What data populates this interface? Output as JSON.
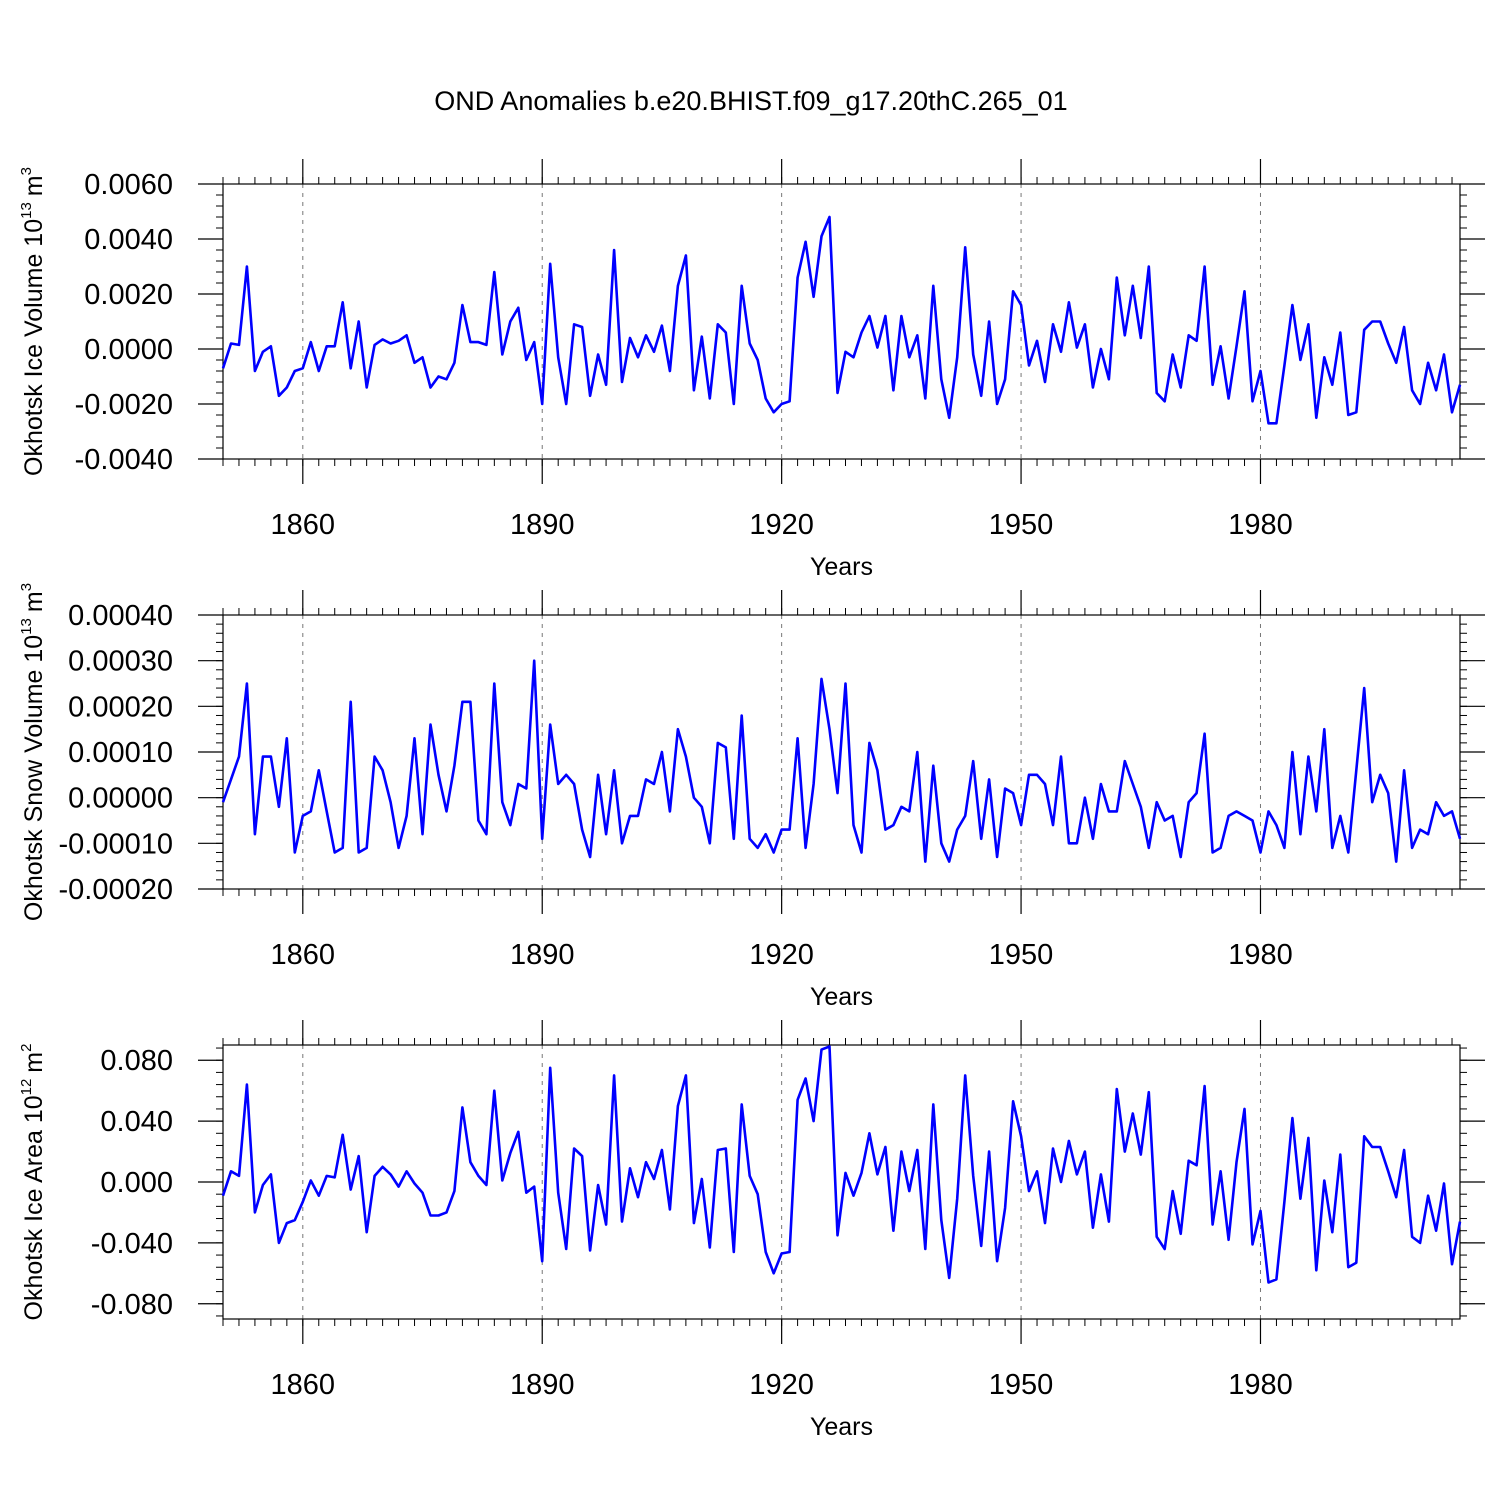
{
  "figure": {
    "title": "OND Anomalies b.e20.BHIST.f09_g17.20thC.265_01",
    "line_color": "#0000ff"
  },
  "chart_data": [
    {
      "type": "line",
      "ylabel_main": "Okhotsk Ice Volume 10",
      "ylabel_exp": "13",
      "ylabel_unit": "m",
      "ylabel_unit_exp": "3",
      "xlabel": "Years",
      "xlim": [
        1850,
        2005
      ],
      "ylim": [
        -0.004,
        0.006
      ],
      "yticks": [
        -0.004,
        -0.002,
        0.0,
        0.002,
        0.004,
        0.006
      ],
      "ytick_labels": [
        "-0.0040",
        "-0.0020",
        "0.0000",
        "0.0020",
        "0.0040",
        "0.0060"
      ],
      "xticks": [
        1860,
        1890,
        1920,
        1950,
        1980
      ],
      "xtick_labels": [
        "1860",
        "1890",
        "1920",
        "1950",
        "1980"
      ],
      "x_start": 1850,
      "values": [
        -0.0007,
        0.0002,
        0.00015,
        0.003,
        -0.0008,
        -0.0001,
        0.0001,
        -0.0017,
        -0.0014,
        -0.0008,
        -0.0007,
        0.00025,
        -0.0008,
        0.0001,
        0.0001,
        0.0017,
        -0.0007,
        0.001,
        -0.0014,
        0.00015,
        0.00035,
        0.0002,
        0.0003,
        0.0005,
        -0.0005,
        -0.0003,
        -0.0014,
        -0.001,
        -0.0011,
        -0.0005,
        0.0016,
        0.00025,
        0.00025,
        0.00015,
        0.0028,
        -0.0002,
        0.001,
        0.0015,
        -0.0004,
        0.00025,
        -0.002,
        0.0031,
        -0.0003,
        -0.002,
        0.0009,
        0.0008,
        -0.0017,
        -0.0002,
        -0.0013,
        0.0036,
        -0.0012,
        0.0004,
        -0.0003,
        0.0005,
        -0.0001,
        0.00085,
        -0.0008,
        0.0023,
        0.0034,
        -0.0015,
        0.00045,
        -0.0018,
        0.0009,
        0.0006,
        -0.002,
        0.0023,
        0.0002,
        -0.0004,
        -0.0018,
        -0.0023,
        -0.002,
        -0.0019,
        0.0026,
        0.0039,
        0.0019,
        0.0041,
        0.0048,
        -0.0016,
        -0.0001,
        -0.0003,
        0.0006,
        0.0012,
        5e-05,
        0.0012,
        -0.0015,
        0.0012,
        -0.0003,
        0.0005,
        -0.0018,
        0.0023,
        -0.0011,
        -0.0025,
        -0.0003,
        0.0037,
        -0.0002,
        -0.0017,
        0.001,
        -0.002,
        -0.0011,
        0.0021,
        0.0016,
        -0.0006,
        0.0003,
        -0.0012,
        0.0009,
        -0.0001,
        0.0017,
        5e-05,
        0.0009,
        -0.0014,
        0.0,
        -0.0011,
        0.0026,
        0.0005,
        0.0023,
        0.0004,
        0.003,
        -0.0016,
        -0.0019,
        -0.0002,
        -0.0014,
        0.0005,
        0.0003,
        0.003,
        -0.0013,
        0.0001,
        -0.0018,
        0.0001,
        0.0021,
        -0.0019,
        -0.0008,
        -0.0027,
        -0.0027,
        -0.0006,
        0.0016,
        -0.0004,
        0.0009,
        -0.0025,
        -0.0003,
        -0.0013,
        0.0006,
        -0.0024,
        -0.0023,
        0.0007,
        0.001,
        0.001,
        0.0002,
        -0.0005,
        0.0008,
        -0.0015,
        -0.002,
        -0.0005,
        -0.0015,
        -0.0002,
        -0.0023,
        -0.0013
      ]
    },
    {
      "type": "line",
      "ylabel_main": "Okhotsk Snow Volume 10",
      "ylabel_exp": "13",
      "ylabel_unit": "m",
      "ylabel_unit_exp": "3",
      "xlabel": "Years",
      "xlim": [
        1850,
        2005
      ],
      "ylim": [
        -0.0002,
        0.0004
      ],
      "yticks": [
        -0.0002,
        -0.0001,
        0.0,
        0.0001,
        0.0002,
        0.0003,
        0.0004
      ],
      "ytick_labels": [
        "-0.00020",
        "-0.00010",
        "0.00000",
        "0.00010",
        "0.00020",
        "0.00030",
        "0.00040"
      ],
      "xticks": [
        1860,
        1890,
        1920,
        1950,
        1980
      ],
      "xtick_labels": [
        "1860",
        "1890",
        "1920",
        "1950",
        "1980"
      ],
      "x_start": 1850,
      "values": [
        -1e-05,
        4e-05,
        9e-05,
        0.00025,
        -8e-05,
        9e-05,
        9e-05,
        -2e-05,
        0.00013,
        -0.00012,
        -4e-05,
        -3e-05,
        6e-05,
        -3e-05,
        -0.00012,
        -0.00011,
        0.00021,
        -0.00012,
        -0.00011,
        9e-05,
        6e-05,
        -1e-05,
        -0.00011,
        -4e-05,
        0.00013,
        -8e-05,
        0.00016,
        5e-05,
        -3e-05,
        7e-05,
        0.00021,
        0.00021,
        -5e-05,
        -8e-05,
        0.00025,
        -1e-05,
        -6e-05,
        3e-05,
        2e-05,
        0.0003,
        -9e-05,
        0.00016,
        3e-05,
        5e-05,
        3e-05,
        -7e-05,
        -0.00013,
        5e-05,
        -8e-05,
        6e-05,
        -0.0001,
        -4e-05,
        -4e-05,
        4e-05,
        3e-05,
        0.0001,
        -3e-05,
        0.00015,
        9e-05,
        0.0,
        -2e-05,
        -0.0001,
        0.00012,
        0.00011,
        -9e-05,
        0.00018,
        -9e-05,
        -0.00011,
        -8e-05,
        -0.00012,
        -7e-05,
        -7e-05,
        0.00013,
        -0.00011,
        3e-05,
        0.00026,
        0.00015,
        1e-05,
        0.00025,
        -6e-05,
        -0.00012,
        0.00012,
        6e-05,
        -7e-05,
        -6e-05,
        -2e-05,
        -3e-05,
        0.0001,
        -0.00014,
        7e-05,
        -0.0001,
        -0.00014,
        -7e-05,
        -4e-05,
        8e-05,
        -9e-05,
        4e-05,
        -0.00013,
        2e-05,
        1e-05,
        -6e-05,
        5e-05,
        5e-05,
        3e-05,
        -6e-05,
        9e-05,
        -0.0001,
        -0.0001,
        0.0,
        -9e-05,
        3e-05,
        -3e-05,
        -3e-05,
        8e-05,
        3e-05,
        -2e-05,
        -0.00011,
        -1e-05,
        -5e-05,
        -4e-05,
        -0.00013,
        -1e-05,
        1e-05,
        0.00014,
        -0.00012,
        -0.00011,
        -4e-05,
        -3e-05,
        -4e-05,
        -5e-05,
        -0.00012,
        -3e-05,
        -6e-05,
        -0.00011,
        0.0001,
        -8e-05,
        9e-05,
        -3e-05,
        0.00015,
        -0.00011,
        -4e-05,
        -0.00012,
        6e-05,
        0.00024,
        -1e-05,
        5e-05,
        1e-05,
        -0.00014,
        6e-05,
        -0.00011,
        -7e-05,
        -8e-05,
        -1e-05,
        -4e-05,
        -3e-05,
        -9e-05
      ]
    },
    {
      "type": "line",
      "ylabel_main": "Okhotsk Ice Area 10",
      "ylabel_exp": "12",
      "ylabel_unit": "m",
      "ylabel_unit_exp": "2",
      "xlabel": "Years",
      "xlim": [
        1850,
        2005
      ],
      "ylim": [
        -0.09,
        0.09
      ],
      "yticks": [
        -0.08,
        -0.04,
        0.0,
        0.04,
        0.08
      ],
      "ytick_labels": [
        "-0.080",
        "-0.040",
        "0.000",
        "0.040",
        "0.080"
      ],
      "xticks": [
        1860,
        1890,
        1920,
        1950,
        1980
      ],
      "xtick_labels": [
        "1860",
        "1890",
        "1920",
        "1950",
        "1980"
      ],
      "x_start": 1850,
      "values": [
        -0.009,
        0.007,
        0.004,
        0.064,
        -0.02,
        -0.002,
        0.005,
        -0.04,
        -0.027,
        -0.025,
        -0.013,
        0.001,
        -0.009,
        0.004,
        0.003,
        0.031,
        -0.005,
        0.017,
        -0.033,
        0.004,
        0.01,
        0.005,
        -0.003,
        0.007,
        -0.001,
        -0.007,
        -0.022,
        -0.022,
        -0.02,
        -0.006,
        0.049,
        0.013,
        0.004,
        -0.002,
        0.06,
        0.001,
        0.019,
        0.033,
        -0.007,
        -0.003,
        -0.052,
        0.075,
        -0.007,
        -0.044,
        0.022,
        0.017,
        -0.045,
        -0.002,
        -0.028,
        0.07,
        -0.026,
        0.009,
        -0.01,
        0.013,
        0.002,
        0.021,
        -0.018,
        0.05,
        0.07,
        -0.027,
        0.002,
        -0.043,
        0.021,
        0.022,
        -0.046,
        0.051,
        0.004,
        -0.008,
        -0.046,
        -0.06,
        -0.047,
        -0.046,
        0.054,
        0.068,
        0.04,
        0.087,
        0.089,
        -0.035,
        0.006,
        -0.009,
        0.006,
        0.032,
        0.005,
        0.023,
        -0.032,
        0.02,
        -0.006,
        0.021,
        -0.044,
        0.051,
        -0.025,
        -0.063,
        -0.011,
        0.07,
        0.004,
        -0.042,
        0.02,
        -0.052,
        -0.017,
        0.053,
        0.03,
        -0.006,
        0.007,
        -0.027,
        0.022,
        0.0,
        0.027,
        0.005,
        0.02,
        -0.03,
        0.005,
        -0.026,
        0.061,
        0.02,
        0.045,
        0.018,
        0.059,
        -0.036,
        -0.044,
        -0.006,
        -0.034,
        0.014,
        0.011,
        0.063,
        -0.028,
        0.007,
        -0.038,
        0.013,
        0.048,
        -0.041,
        -0.019,
        -0.066,
        -0.064,
        -0.013,
        0.042,
        -0.011,
        0.029,
        -0.058,
        0.001,
        -0.033,
        0.018,
        -0.056,
        -0.053,
        0.03,
        0.023,
        0.023,
        0.007,
        -0.01,
        0.021,
        -0.036,
        -0.04,
        -0.009,
        -0.032,
        -0.001,
        -0.054,
        -0.026
      ]
    }
  ]
}
